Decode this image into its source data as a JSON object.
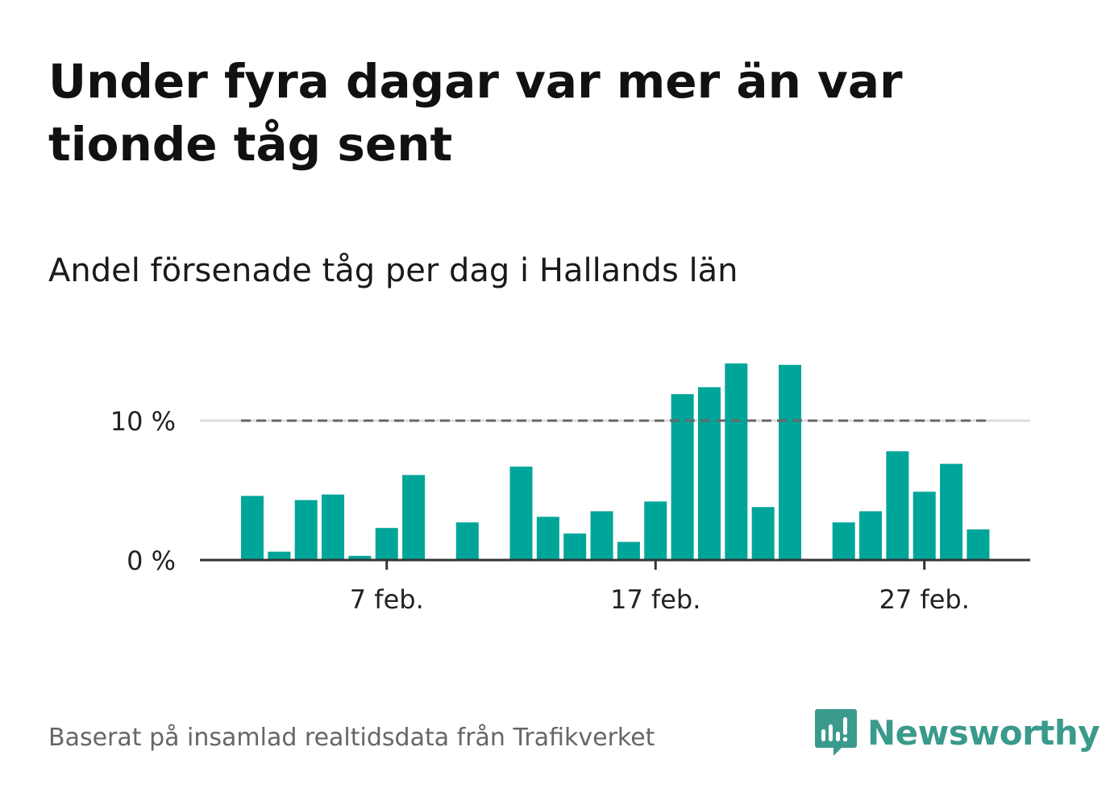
{
  "title": "Under fyra dagar var mer än var tionde tåg sent",
  "subtitle": "Andel försenade tåg per dag i Hallands län",
  "footer": {
    "source": "Baserat på insamlad realtidsdata från Trafikverket",
    "logo_text": "Newsworthy",
    "logo_icon": "bar-chart-speech-bubble-icon"
  },
  "colors": {
    "bar": "#00a599",
    "reference_line": "#666666",
    "grid": "#dddddd",
    "axis": "#333333",
    "logo": "#3a9a8c"
  },
  "chart_data": {
    "type": "bar",
    "title": "Under fyra dagar var mer än var tionde tåg sent",
    "subtitle": "Andel försenade tåg per dag i Hallands län",
    "x": [
      "2 feb.",
      "3 feb.",
      "4 feb.",
      "5 feb.",
      "6 feb.",
      "7 feb.",
      "8 feb.",
      "9 feb.",
      "10 feb.",
      "11 feb.",
      "12 feb.",
      "13 feb.",
      "14 feb.",
      "15 feb.",
      "16 feb.",
      "17 feb.",
      "18 feb.",
      "19 feb.",
      "20 feb.",
      "21 feb.",
      "22 feb.",
      "23 feb.",
      "24 feb.",
      "25 feb.",
      "26 feb.",
      "27 feb.",
      "28 feb.",
      "29 feb."
    ],
    "values": [
      4.6,
      0.6,
      4.3,
      4.7,
      0.3,
      2.3,
      6.1,
      null,
      2.7,
      null,
      6.7,
      3.1,
      1.9,
      3.5,
      1.3,
      4.2,
      11.9,
      12.4,
      14.1,
      3.8,
      14.0,
      null,
      2.7,
      3.5,
      7.8,
      4.9,
      6.9,
      2.2
    ],
    "xticks": [
      "7 feb.",
      "17 feb.",
      "27 feb."
    ],
    "yticks": [
      0,
      10
    ],
    "ytick_labels": [
      "0 %",
      "10 %"
    ],
    "ylim": [
      0,
      15
    ],
    "reference_line": {
      "value": 10,
      "style": "dashed"
    },
    "grid": "horizontal",
    "xlabel": "",
    "ylabel": ""
  }
}
